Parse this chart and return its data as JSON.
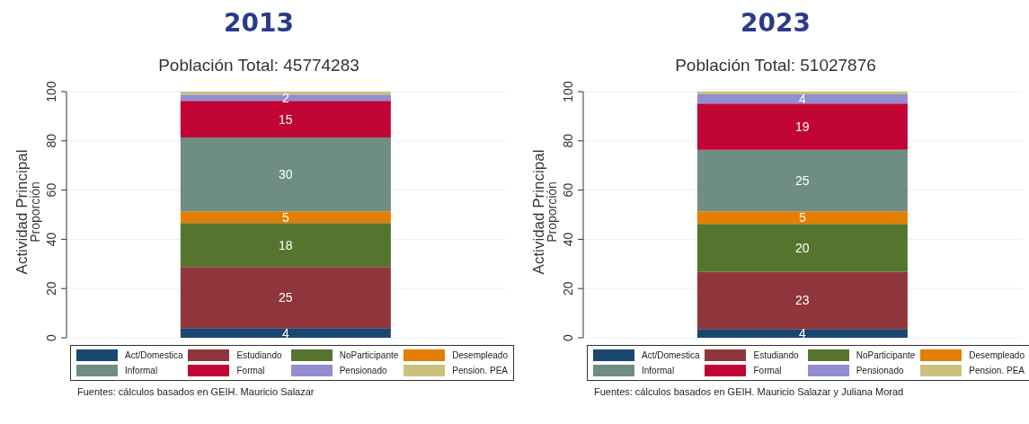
{
  "chart_data": [
    {
      "type": "bar",
      "title": "2013",
      "subtitle": "Población Total: 45774283",
      "ylabel": "Actividad Principal\nProporción",
      "categories": [
        null
      ],
      "stacked": true,
      "ylim": [
        0,
        100
      ],
      "yticks": [
        0,
        20,
        40,
        60,
        80,
        100
      ],
      "grid": "y",
      "legend": "bottom",
      "series": [
        {
          "name": "Act/Domestica",
          "color": "#1a476f",
          "values": [
            3.9
          ],
          "value_labels": [
            "4"
          ]
        },
        {
          "name": "Estudiando",
          "color": "#90353b",
          "values": [
            24.8
          ],
          "value_labels": [
            "25"
          ]
        },
        {
          "name": "NoParticipante",
          "color": "#55752f",
          "values": [
            17.9
          ],
          "value_labels": [
            "18"
          ]
        },
        {
          "name": "Desempleado",
          "color": "#e37e00",
          "values": [
            4.8
          ],
          "value_labels": [
            "5"
          ]
        },
        {
          "name": "Informal",
          "color": "#6e8e84",
          "values": [
            30
          ],
          "value_labels": [
            "30"
          ]
        },
        {
          "name": "Formal",
          "color": "#c10534",
          "values": [
            14.9
          ],
          "value_labels": [
            "15"
          ]
        },
        {
          "name": "Pensionado",
          "color": "#938dd2",
          "values": [
            2.5
          ],
          "value_labels": [
            "2"
          ]
        },
        {
          "name": "Pension. PEA",
          "color": "#cac27e",
          "values": [
            1.2
          ],
          "value_labels": [
            null
          ]
        }
      ],
      "annotations": [
        "Fuentes: cálculos basados en GEIH. Mauricio Salazar"
      ]
    },
    {
      "type": "bar",
      "title": "2023",
      "subtitle": "Población Total: 51027876",
      "ylabel": "Actividad Principal\nProporción",
      "categories": [
        null
      ],
      "stacked": true,
      "ylim": [
        0,
        100
      ],
      "yticks": [
        0,
        20,
        40,
        60,
        80,
        100
      ],
      "grid": "y",
      "legend": "bottom",
      "series": [
        {
          "name": "Act/Domestica",
          "color": "#1a476f",
          "values": [
            3.6
          ],
          "value_labels": [
            "4"
          ]
        },
        {
          "name": "Estudiando",
          "color": "#90353b",
          "values": [
            23.1
          ],
          "value_labels": [
            "23"
          ]
        },
        {
          "name": "NoParticipante",
          "color": "#55752f",
          "values": [
            19.6
          ],
          "value_labels": [
            "20"
          ]
        },
        {
          "name": "Desempleado",
          "color": "#e37e00",
          "values": [
            5.1
          ],
          "value_labels": [
            "5"
          ]
        },
        {
          "name": "Informal",
          "color": "#6e8e84",
          "values": [
            25
          ],
          "value_labels": [
            "25"
          ]
        },
        {
          "name": "Formal",
          "color": "#c10534",
          "values": [
            18.8
          ],
          "value_labels": [
            "19"
          ]
        },
        {
          "name": "Pensionado",
          "color": "#938dd2",
          "values": [
            3.7
          ],
          "value_labels": [
            "4"
          ]
        },
        {
          "name": "Pension. PEA",
          "color": "#cac27e",
          "values": [
            1.1
          ],
          "value_labels": [
            null
          ]
        }
      ],
      "annotations": [
        "Fuentes: cálculos basados en GEIH. Mauricio Salazar y Juliana Morad"
      ]
    }
  ]
}
